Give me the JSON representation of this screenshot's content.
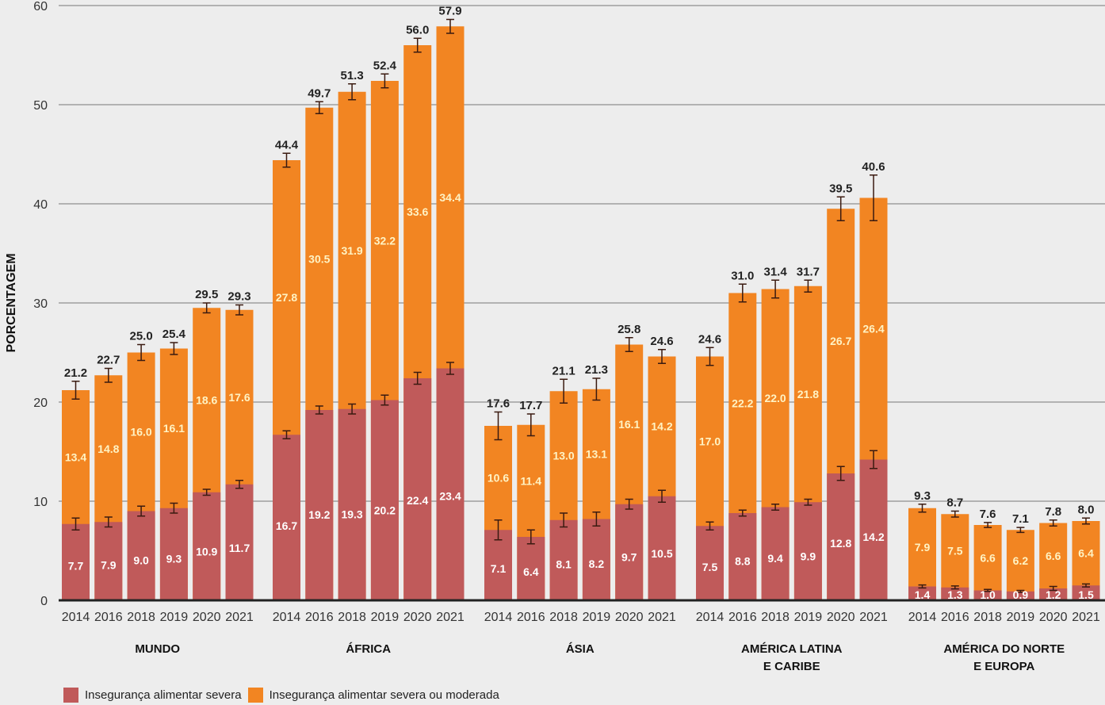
{
  "chart_data": {
    "type": "bar",
    "stacked": true,
    "title": "",
    "xlabel": "",
    "ylabel": "PORCENTAGEM",
    "ylim": [
      0,
      60
    ],
    "yticks": [
      0,
      10,
      20,
      30,
      40,
      50,
      60
    ],
    "grid": true,
    "legend_position": "bottom-left",
    "colors": {
      "severe": "#c05a5a",
      "moderate": "#f28522",
      "inner_label_severe": "#ffffff",
      "inner_label_moderate": "#fff3c4"
    },
    "legend": [
      {
        "key": "severe",
        "label": "Insegurança alimentar severa"
      },
      {
        "key": "moderate",
        "label": "Insegurança alimentar severa ou moderada"
      }
    ],
    "years": [
      "2014",
      "2016",
      "2018",
      "2019",
      "2020",
      "2021"
    ],
    "groups": [
      {
        "name": "MUNDO",
        "name_lines": [
          "MUNDO"
        ],
        "severe": [
          7.7,
          7.9,
          9.0,
          9.3,
          10.9,
          11.7
        ],
        "moderate": [
          13.4,
          14.8,
          16.0,
          16.1,
          18.6,
          17.6
        ],
        "total": [
          21.2,
          22.7,
          25.0,
          25.4,
          29.5,
          29.3
        ],
        "severe_err": [
          0.6,
          0.5,
          0.5,
          0.5,
          0.3,
          0.4
        ],
        "total_err": [
          0.9,
          0.7,
          0.8,
          0.6,
          0.5,
          0.5
        ]
      },
      {
        "name": "ÁFRICA",
        "name_lines": [
          "ÁFRICA"
        ],
        "severe": [
          16.7,
          19.2,
          19.3,
          20.2,
          22.4,
          23.4
        ],
        "moderate": [
          27.8,
          30.5,
          31.9,
          32.2,
          33.6,
          34.4
        ],
        "total": [
          44.4,
          49.7,
          51.3,
          52.4,
          56.0,
          57.9
        ],
        "severe_err": [
          0.4,
          0.4,
          0.5,
          0.5,
          0.6,
          0.6
        ],
        "total_err": [
          0.7,
          0.6,
          0.8,
          0.7,
          0.7,
          0.7
        ]
      },
      {
        "name": "ÁSIA",
        "name_lines": [
          "ÁSIA"
        ],
        "severe": [
          7.1,
          6.4,
          8.1,
          8.2,
          9.7,
          10.5
        ],
        "moderate": [
          10.6,
          11.4,
          13.0,
          13.1,
          16.1,
          14.2
        ],
        "total": [
          17.6,
          17.7,
          21.1,
          21.3,
          25.8,
          24.6
        ],
        "severe_err": [
          1.0,
          0.7,
          0.7,
          0.7,
          0.5,
          0.6
        ],
        "total_err": [
          1.4,
          1.1,
          1.2,
          1.1,
          0.7,
          0.7
        ]
      },
      {
        "name": "AMÉRICA LATINA E CARIBE",
        "name_lines": [
          "AMÉRICA LATINA",
          "E CARIBE"
        ],
        "severe": [
          7.5,
          8.8,
          9.4,
          9.9,
          12.8,
          14.2
        ],
        "moderate": [
          17.0,
          22.2,
          22.0,
          21.8,
          26.7,
          26.4
        ],
        "total": [
          24.6,
          31.0,
          31.4,
          31.7,
          39.5,
          40.6
        ],
        "severe_err": [
          0.4,
          0.3,
          0.3,
          0.3,
          0.7,
          0.9
        ],
        "total_err": [
          0.9,
          0.9,
          0.9,
          0.6,
          1.2,
          2.3
        ]
      },
      {
        "name": "AMÉRICA DO NORTE E EUROPA",
        "name_lines": [
          "AMÉRICA DO NORTE",
          "E EUROPA"
        ],
        "severe": [
          1.4,
          1.3,
          1.0,
          0.9,
          1.2,
          1.5
        ],
        "moderate": [
          7.9,
          7.5,
          6.6,
          6.2,
          6.6,
          6.4
        ],
        "total": [
          9.3,
          8.7,
          7.6,
          7.1,
          7.8,
          8.0
        ],
        "severe_err": [
          0.15,
          0.15,
          0.1,
          0.1,
          0.2,
          0.15
        ],
        "total_err": [
          0.4,
          0.3,
          0.25,
          0.25,
          0.3,
          0.3
        ]
      }
    ]
  }
}
